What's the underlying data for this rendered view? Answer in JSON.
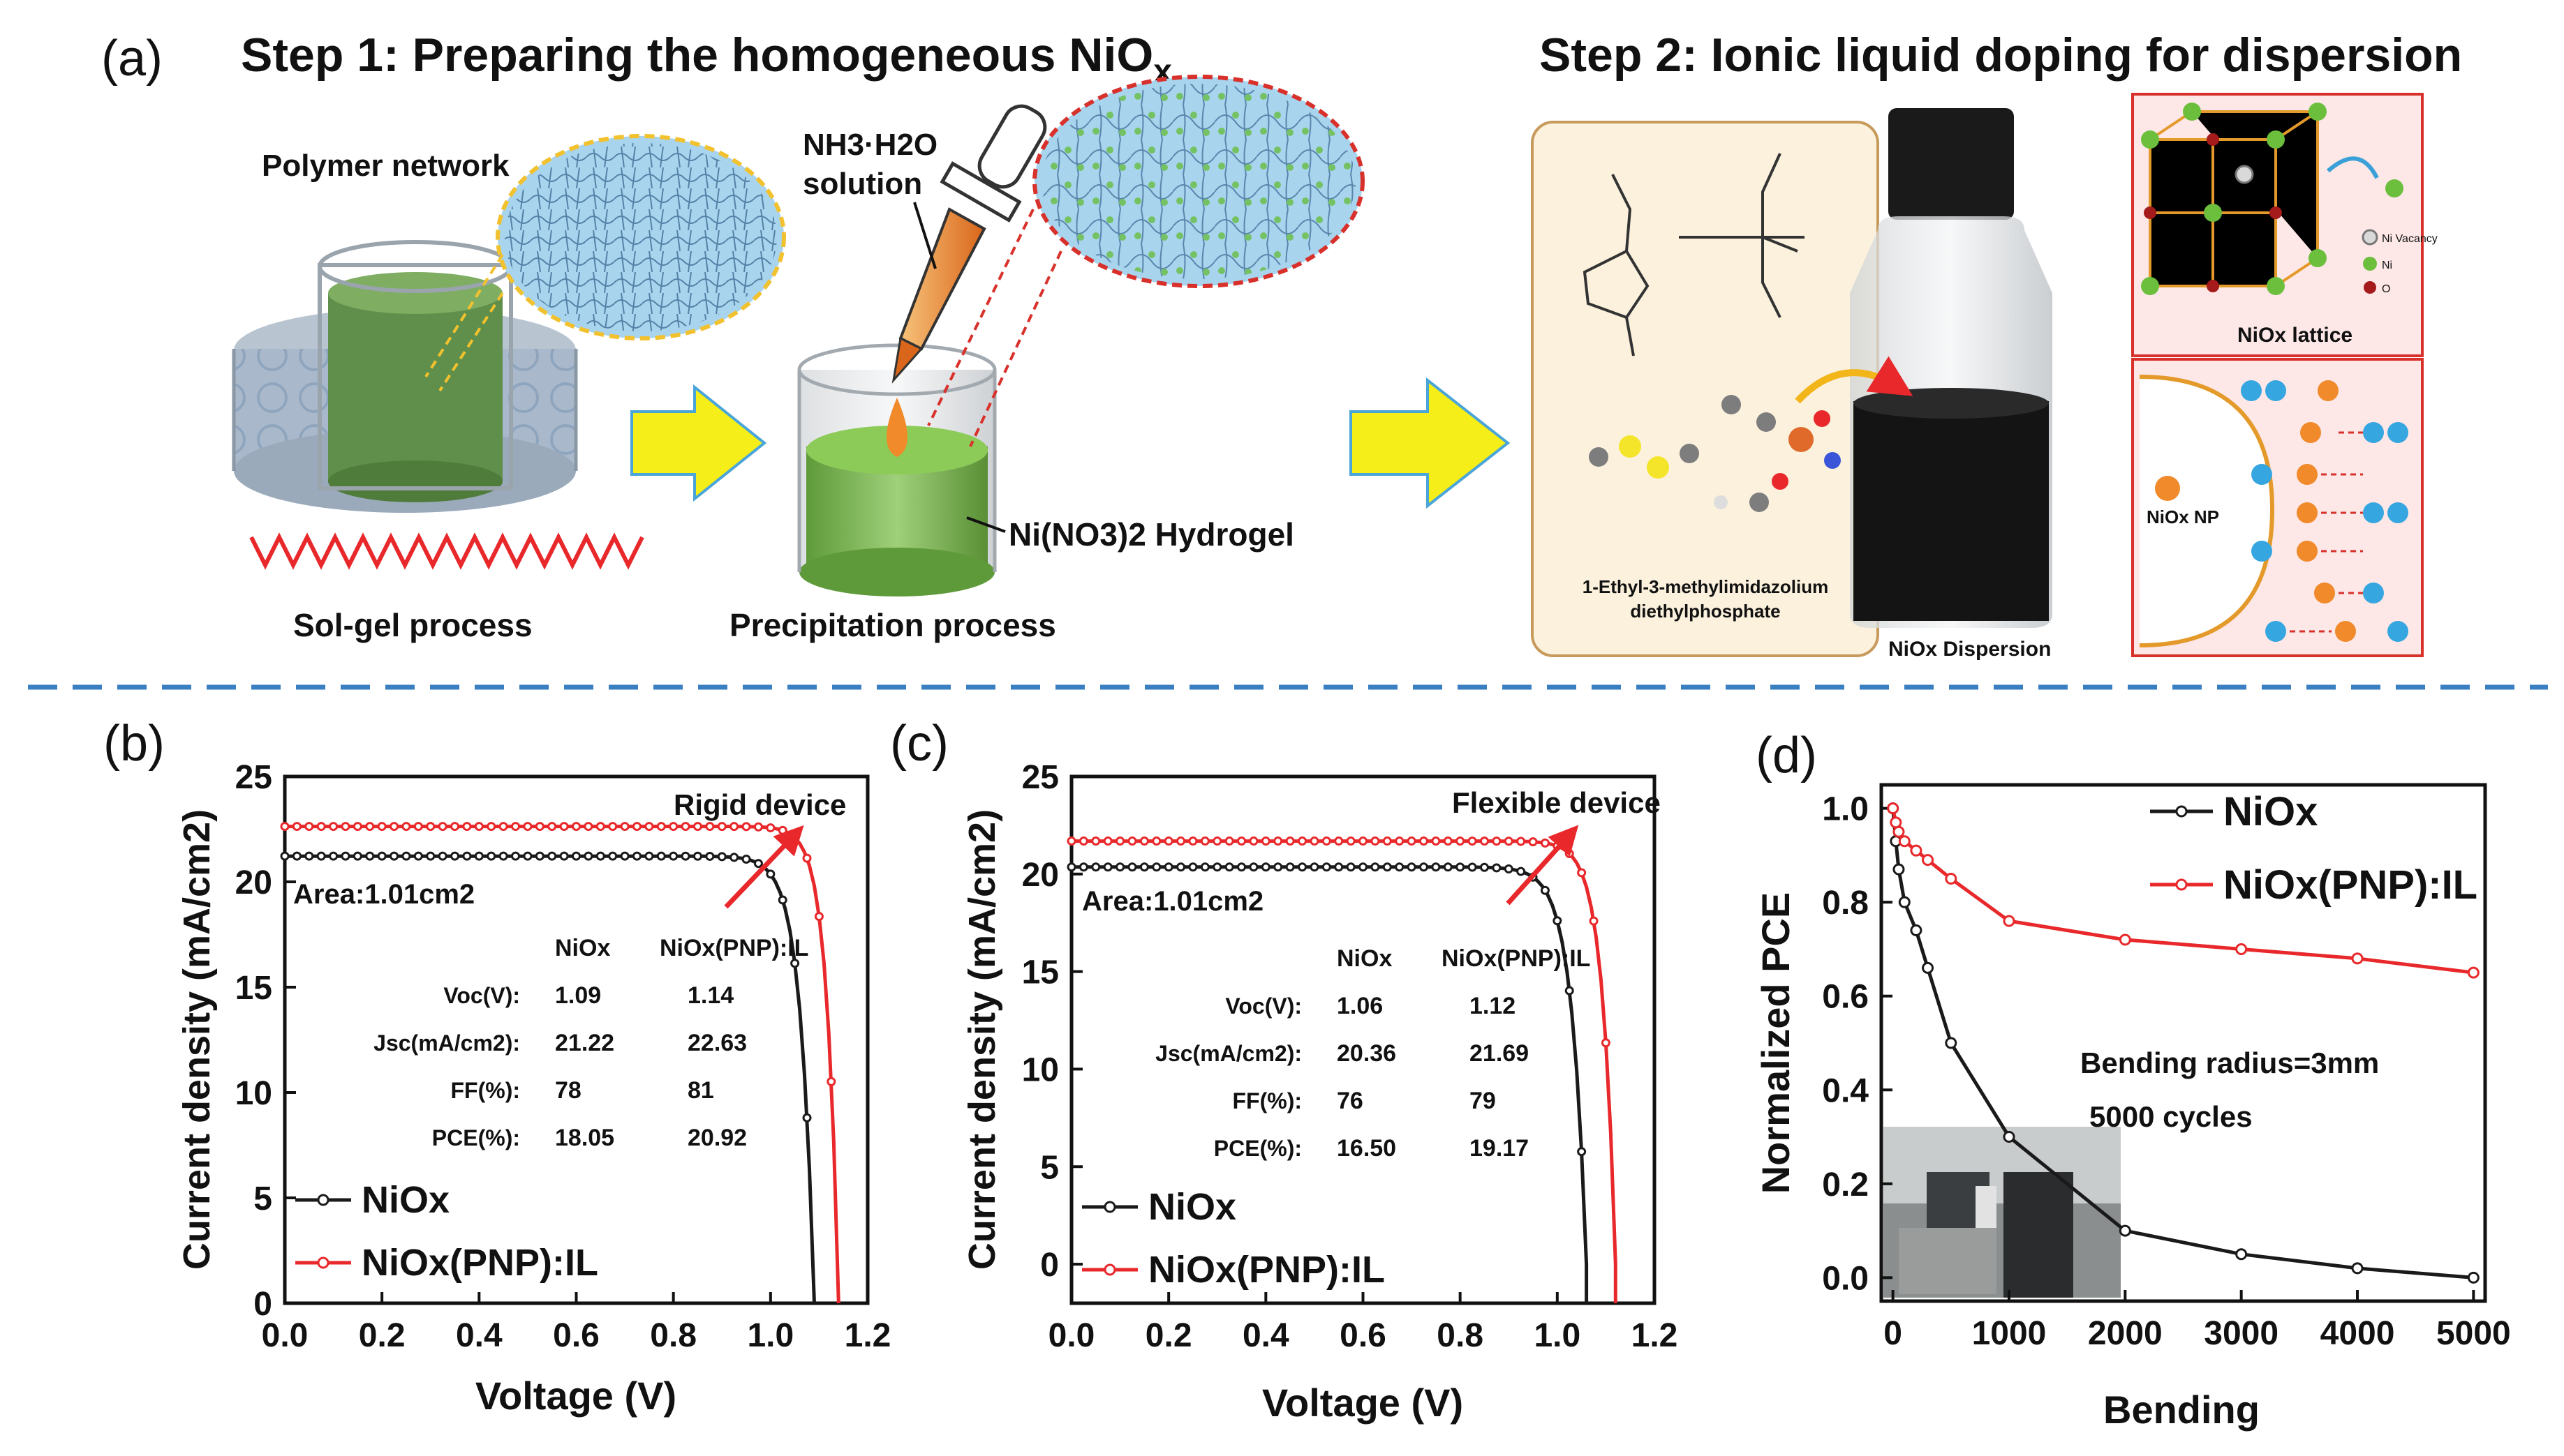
{
  "panel_a": {
    "label": "(a)",
    "step1": {
      "pre": "Step 1: Preparing the homogeneous NiO",
      "sub": "x"
    },
    "step2": "Step 2: Ionic liquid doping for dispersion",
    "polymer_network": "Polymer network",
    "solgel": "Sol-gel process",
    "nh3_line1": "NH3·H2O",
    "nh3_line2": "solution",
    "precipitation": "Precipitation process",
    "hydrogel": "Ni(NO3)2 Hydrogel",
    "il_name_line1": "1-Ethyl-3-methylimidazolium",
    "il_name_line2": "diethylphosphate",
    "dispersion_label": "NiOx Dispersion",
    "lattice_label": "NiOx lattice",
    "lattice_legend": [
      "Ni Vacancy",
      "Ni",
      "O"
    ],
    "np_label": "NiOx NP"
  },
  "colors": {
    "black_series": "#1a1a1a",
    "red_series": "#e8282b",
    "dashed_divider": "#3a7fc1"
  },
  "chart_data": [
    {
      "panel": "(b)",
      "type": "line",
      "annotation": "Rigid device",
      "area": "Area:1.01cm2",
      "xlabel": "Voltage (V)",
      "ylabel": "Current density (mA/cm2)",
      "xlim": [
        0.0,
        1.2
      ],
      "ylim": [
        0,
        25
      ],
      "xticks": [
        "0.0",
        "0.2",
        "0.4",
        "0.6",
        "0.8",
        "1.0",
        "1.2"
      ],
      "yticks": [
        "0",
        "5",
        "10",
        "15",
        "20",
        "25"
      ],
      "series": [
        {
          "name": "NiOx",
          "color": "#1a1a1a",
          "jsc": 21.22,
          "voc": 1.09,
          "knee": 0.93,
          "k": 0.028
        },
        {
          "name": "NiOx(PNP):IL",
          "color": "#e8282b",
          "jsc": 22.63,
          "voc": 1.14,
          "knee": 1.0,
          "k": 0.024
        }
      ],
      "table": {
        "headers": [
          "",
          "NiOx",
          "NiOx(PNP):IL"
        ],
        "rows": [
          [
            "Voc(V):",
            "1.09",
            "1.14"
          ],
          [
            "Jsc(mA/cm2):",
            "21.22",
            "22.63"
          ],
          [
            "FF(%):",
            "78",
            "81"
          ],
          [
            "PCE(%):",
            "18.05",
            "20.92"
          ]
        ]
      }
    },
    {
      "panel": "(c)",
      "type": "line",
      "annotation": "Flexible device",
      "area": "Area:1.01cm2",
      "xlabel": "Voltage (V)",
      "ylabel": "Current density (mA/cm2)",
      "xlim": [
        0.0,
        1.2
      ],
      "ylim": [
        -2,
        25
      ],
      "xticks": [
        "0.0",
        "0.2",
        "0.4",
        "0.6",
        "0.8",
        "1.0",
        "1.2"
      ],
      "yticks": [
        "0",
        "5",
        "10",
        "15",
        "20",
        "25"
      ],
      "series": [
        {
          "name": "NiOx",
          "color": "#1a1a1a",
          "jsc": 20.36,
          "voc": 1.06,
          "knee": 0.9,
          "k": 0.03
        },
        {
          "name": "NiOx(PNP):IL",
          "color": "#e8282b",
          "jsc": 21.69,
          "voc": 1.12,
          "knee": 0.96,
          "k": 0.027
        }
      ],
      "table": {
        "headers": [
          "",
          "NiOx",
          "NiOx(PNP):IL"
        ],
        "rows": [
          [
            "Voc(V):",
            "1.06",
            "1.12"
          ],
          [
            "Jsc(mA/cm2):",
            "20.36",
            "21.69"
          ],
          [
            "FF(%):",
            "76",
            "79"
          ],
          [
            "PCE(%):",
            "16.50",
            "19.17"
          ]
        ]
      }
    },
    {
      "panel": "(d)",
      "type": "line",
      "xlabel": "Bending",
      "ylabel": "Normalized PCE",
      "xlim": [
        -100,
        5100
      ],
      "ylim": [
        -0.05,
        1.05
      ],
      "xticks": [
        "0",
        "1000",
        "2000",
        "3000",
        "4000",
        "5000"
      ],
      "yticks": [
        "0.0",
        "0.2",
        "0.4",
        "0.6",
        "0.8",
        "1.0"
      ],
      "annotation_1": "Bending radius=3mm",
      "annotation_2": "5000 cycles",
      "series": [
        {
          "name": "NiOx",
          "color": "#1a1a1a",
          "x": [
            0,
            25,
            50,
            100,
            200,
            300,
            500,
            1000,
            2000,
            3000,
            4000,
            5000
          ],
          "y": [
            1.0,
            0.93,
            0.87,
            0.8,
            0.74,
            0.66,
            0.5,
            0.3,
            0.1,
            0.05,
            0.02,
            0.0
          ]
        },
        {
          "name": "NiOx(PNP):IL",
          "color": "#e8282b",
          "x": [
            0,
            25,
            50,
            100,
            200,
            300,
            500,
            1000,
            2000,
            3000,
            4000,
            5000
          ],
          "y": [
            1.0,
            0.97,
            0.95,
            0.93,
            0.91,
            0.89,
            0.85,
            0.76,
            0.72,
            0.7,
            0.68,
            0.65
          ]
        }
      ]
    }
  ]
}
